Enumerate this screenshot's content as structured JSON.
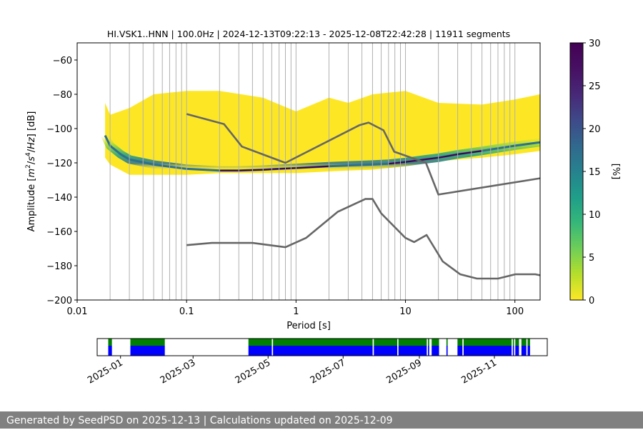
{
  "footer": {
    "text": "Generated by SeedPSD on 2025-12-13 | Calculations updated on 2025-12-09"
  },
  "chart_data": [
    {
      "type": "heatmap",
      "title": "HI.VSK1..HNN | 100.0Hz | 2024-12-13T09:22:13 - 2025-12-08T22:42:28 | 11911 segments",
      "xlabel": "Period [s]",
      "ylabel_parts": [
        "Amplitude [",
        "m",
        "2",
        "/",
        "s",
        "4",
        "/",
        "Hz",
        "] [dB]"
      ],
      "xscale": "log",
      "xlim": [
        0.01,
        170
      ],
      "ylim": [
        -200,
        -50
      ],
      "x_ticks": [
        0.01,
        0.1,
        1,
        10,
        100
      ],
      "x_tick_labels": [
        "0.01",
        "0.1",
        "1",
        "10",
        "100"
      ],
      "y_ticks": [
        -200,
        -180,
        -160,
        -140,
        -120,
        -100,
        -80,
        -60
      ],
      "y_tick_labels": [
        "−200",
        "−180",
        "−160",
        "−140",
        "−120",
        "−100",
        "−80",
        "−60"
      ],
      "colorbar": {
        "label": "[%]",
        "range": [
          0,
          30
        ],
        "ticks": [
          0,
          5,
          10,
          15,
          20,
          25,
          30
        ],
        "tick_labels": [
          "0",
          "5",
          "10",
          "15",
          "20",
          "25",
          "30"
        ],
        "colormap": "viridis_r"
      },
      "psd_mode": {
        "period": [
          0.018,
          0.02,
          0.025,
          0.03,
          0.05,
          0.1,
          0.2,
          0.3,
          0.5,
          1,
          2,
          3,
          5,
          7,
          10,
          15,
          20,
          30,
          50,
          100,
          170
        ],
        "db": [
          -104,
          -110,
          -115,
          -118,
          -121,
          -123.5,
          -124.5,
          -124.5,
          -124,
          -123,
          -122,
          -121.5,
          -121,
          -120.5,
          -119.5,
          -118,
          -117,
          -115,
          -113,
          -110,
          -108
        ]
      },
      "psd_extent": {
        "period": [
          0.018,
          0.02,
          0.03,
          0.05,
          0.1,
          0.2,
          0.5,
          1,
          2,
          3,
          5,
          10,
          20,
          50,
          100,
          170
        ],
        "upper_db": [
          -85,
          -92,
          -88,
          -80,
          -78,
          -78,
          -82,
          -90,
          -82,
          -85,
          -80,
          -78,
          -85,
          -86,
          -83,
          -80
        ],
        "lower_db": [
          -117,
          -121,
          -127,
          -127,
          -127,
          -126,
          -126,
          -126,
          -125,
          -124.5,
          -124,
          -122,
          -119,
          -117,
          -115,
          -113
        ]
      },
      "series": [
        {
          "name": "high noise model",
          "period": [
            0.1,
            0.22,
            0.32,
            0.8,
            3.8,
            4.6,
            6.3,
            7.9,
            15.4,
            20,
            170
          ],
          "db": [
            -91.5,
            -97.4,
            -110.5,
            -120,
            -98,
            -96.5,
            -101,
            -113.5,
            -120,
            -138.5,
            -129
          ]
        },
        {
          "name": "low noise model",
          "period": [
            0.1,
            0.17,
            0.4,
            0.8,
            1.24,
            2.4,
            4.3,
            5,
            6,
            10,
            12,
            15.6,
            21.9,
            31.6,
            45,
            70,
            101,
            154,
            170
          ],
          "db": [
            -168,
            -166.7,
            -166.7,
            -169.2,
            -163.7,
            -148.6,
            -141.1,
            -141.1,
            -149.4,
            -163.8,
            -166.2,
            -162.1,
            -177.5,
            -185,
            -187.5,
            -187.5,
            -185,
            -185,
            -185.6
          ]
        }
      ]
    },
    {
      "type": "timeline",
      "x_tick_labels": [
        "2025-01",
        "2025-03",
        "2025-05",
        "2025-07",
        "2025-09",
        "2025-11"
      ],
      "x_tick_dates": [
        "2025-01-01",
        "2025-03-01",
        "2025-05-01",
        "2025-07-01",
        "2025-09-01",
        "2025-11-01"
      ],
      "range": [
        "2024-12-13",
        "2025-12-14"
      ],
      "coverage": [
        [
          "2024-12-22",
          "2024-12-25"
        ],
        [
          "2025-01-09",
          "2025-02-06"
        ],
        [
          "2025-04-15",
          "2025-05-04"
        ],
        [
          "2025-05-05",
          "2025-07-25"
        ],
        [
          "2025-07-26",
          "2025-08-14"
        ],
        [
          "2025-08-15",
          "2025-09-07"
        ],
        [
          "2025-09-08",
          "2025-09-09"
        ],
        [
          "2025-09-11",
          "2025-09-17"
        ],
        [
          "2025-09-23",
          "2025-09-24"
        ],
        [
          "2025-10-02",
          "2025-10-06"
        ],
        [
          "2025-10-07",
          "2025-11-15"
        ],
        [
          "2025-11-16",
          "2025-11-17"
        ],
        [
          "2025-11-18",
          "2025-11-21"
        ],
        [
          "2025-11-23",
          "2025-11-27"
        ],
        [
          "2025-11-28",
          "2025-11-30"
        ]
      ],
      "colors": {
        "top": "#008000",
        "bottom": "#0000ff"
      }
    }
  ]
}
